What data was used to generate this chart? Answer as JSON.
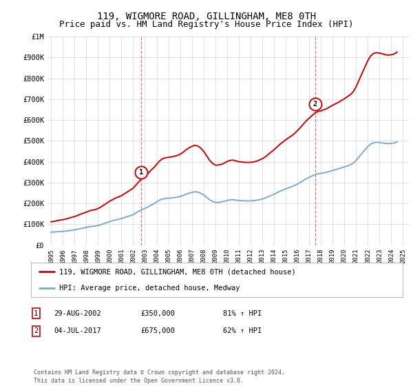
{
  "title": "119, WIGMORE ROAD, GILLINGHAM, ME8 0TH",
  "subtitle": "Price paid vs. HM Land Registry's House Price Index (HPI)",
  "background_color": "#ffffff",
  "plot_bg_color": "#ffffff",
  "grid_color": "#e0e0e0",
  "ylim": [
    0,
    1000000
  ],
  "yticks": [
    0,
    100000,
    200000,
    300000,
    400000,
    500000,
    600000,
    700000,
    800000,
    900000,
    1000000
  ],
  "ytick_labels": [
    "£0",
    "£100K",
    "£200K",
    "£300K",
    "£400K",
    "£500K",
    "£600K",
    "£700K",
    "£800K",
    "£900K",
    "£1M"
  ],
  "xmin": 1994.7,
  "xmax": 2025.5,
  "xticks": [
    1995,
    1996,
    1997,
    1998,
    1999,
    2000,
    2001,
    2002,
    2003,
    2004,
    2005,
    2006,
    2007,
    2008,
    2009,
    2010,
    2011,
    2012,
    2013,
    2014,
    2015,
    2016,
    2017,
    2018,
    2019,
    2020,
    2021,
    2022,
    2023,
    2024,
    2025
  ],
  "sale1_x": 2002.66,
  "sale1_y": 350000,
  "sale1_label": "1",
  "sale1_date": "29-AUG-2002",
  "sale1_price": "£350,000",
  "sale1_hpi": "81% ↑ HPI",
  "sale2_x": 2017.5,
  "sale2_y": 675000,
  "sale2_label": "2",
  "sale2_date": "04-JUL-2017",
  "sale2_price": "£675,000",
  "sale2_hpi": "62% ↑ HPI",
  "red_line_color": "#cc0000",
  "blue_line_color": "#7aaacf",
  "dashed_line_color": "#e87070",
  "legend_label_red": "119, WIGMORE ROAD, GILLINGHAM, ME8 0TH (detached house)",
  "legend_label_blue": "HPI: Average price, detached house, Medway",
  "footer": "Contains HM Land Registry data © Crown copyright and database right 2024.\nThis data is licensed under the Open Government Licence v3.0.",
  "hpi_data_x": [
    1995.0,
    1995.25,
    1995.5,
    1995.75,
    1996.0,
    1996.25,
    1996.5,
    1996.75,
    1997.0,
    1997.25,
    1997.5,
    1997.75,
    1998.0,
    1998.25,
    1998.5,
    1998.75,
    1999.0,
    1999.25,
    1999.5,
    1999.75,
    2000.0,
    2000.25,
    2000.5,
    2000.75,
    2001.0,
    2001.25,
    2001.5,
    2001.75,
    2002.0,
    2002.25,
    2002.5,
    2002.75,
    2003.0,
    2003.25,
    2003.5,
    2003.75,
    2004.0,
    2004.25,
    2004.5,
    2004.75,
    2005.0,
    2005.25,
    2005.5,
    2005.75,
    2006.0,
    2006.25,
    2006.5,
    2006.75,
    2007.0,
    2007.25,
    2007.5,
    2007.75,
    2008.0,
    2008.25,
    2008.5,
    2008.75,
    2009.0,
    2009.25,
    2009.5,
    2009.75,
    2010.0,
    2010.25,
    2010.5,
    2010.75,
    2011.0,
    2011.25,
    2011.5,
    2011.75,
    2012.0,
    2012.25,
    2012.5,
    2012.75,
    2013.0,
    2013.25,
    2013.5,
    2013.75,
    2014.0,
    2014.25,
    2014.5,
    2014.75,
    2015.0,
    2015.25,
    2015.5,
    2015.75,
    2016.0,
    2016.25,
    2016.5,
    2016.75,
    2017.0,
    2017.25,
    2017.5,
    2017.75,
    2018.0,
    2018.25,
    2018.5,
    2018.75,
    2019.0,
    2019.25,
    2019.5,
    2019.75,
    2020.0,
    2020.25,
    2020.5,
    2020.75,
    2021.0,
    2021.25,
    2021.5,
    2021.75,
    2022.0,
    2022.25,
    2022.5,
    2022.75,
    2023.0,
    2023.25,
    2023.5,
    2023.75,
    2024.0,
    2024.25,
    2024.5
  ],
  "hpi_data_y": [
    62000,
    63000,
    64000,
    65000,
    66000,
    67000,
    69000,
    71000,
    73000,
    76000,
    79000,
    82000,
    85000,
    88000,
    90000,
    91000,
    94000,
    98000,
    103000,
    108000,
    113000,
    117000,
    121000,
    124000,
    127000,
    132000,
    137000,
    141000,
    146000,
    155000,
    163000,
    170000,
    176000,
    183000,
    191000,
    198000,
    207000,
    216000,
    221000,
    224000,
    225000,
    226000,
    228000,
    230000,
    233000,
    238000,
    244000,
    249000,
    253000,
    256000,
    254000,
    249000,
    241000,
    230000,
    218000,
    210000,
    205000,
    205000,
    207000,
    210000,
    214000,
    217000,
    218000,
    216000,
    214000,
    213000,
    212000,
    212000,
    212000,
    213000,
    215000,
    218000,
    221000,
    226000,
    232000,
    238000,
    244000,
    251000,
    258000,
    264000,
    270000,
    275000,
    280000,
    286000,
    293000,
    301000,
    310000,
    318000,
    325000,
    332000,
    338000,
    342000,
    344000,
    347000,
    350000,
    354000,
    358000,
    362000,
    366000,
    371000,
    375000,
    380000,
    385000,
    393000,
    406000,
    423000,
    440000,
    457000,
    473000,
    485000,
    491000,
    493000,
    492000,
    490000,
    488000,
    487000,
    488000,
    490000,
    495000
  ],
  "red_data_x": [
    1995.0,
    1995.25,
    1995.5,
    1995.75,
    1996.0,
    1996.25,
    1996.5,
    1996.75,
    1997.0,
    1997.25,
    1997.5,
    1997.75,
    1998.0,
    1998.25,
    1998.5,
    1998.75,
    1999.0,
    1999.25,
    1999.5,
    1999.75,
    2000.0,
    2000.25,
    2000.5,
    2000.75,
    2001.0,
    2001.25,
    2001.5,
    2001.75,
    2002.0,
    2002.25,
    2002.5,
    2002.75,
    2003.0,
    2003.25,
    2003.5,
    2003.75,
    2004.0,
    2004.25,
    2004.5,
    2004.75,
    2005.0,
    2005.25,
    2005.5,
    2005.75,
    2006.0,
    2006.25,
    2006.5,
    2006.75,
    2007.0,
    2007.25,
    2007.5,
    2007.75,
    2008.0,
    2008.25,
    2008.5,
    2008.75,
    2009.0,
    2009.25,
    2009.5,
    2009.75,
    2010.0,
    2010.25,
    2010.5,
    2010.75,
    2011.0,
    2011.25,
    2011.5,
    2011.75,
    2012.0,
    2012.25,
    2012.5,
    2012.75,
    2013.0,
    2013.25,
    2013.5,
    2013.75,
    2014.0,
    2014.25,
    2014.5,
    2014.75,
    2015.0,
    2015.25,
    2015.5,
    2015.75,
    2016.0,
    2016.25,
    2016.5,
    2016.75,
    2017.0,
    2017.25,
    2017.5,
    2017.75,
    2018.0,
    2018.25,
    2018.5,
    2018.75,
    2019.0,
    2019.25,
    2019.5,
    2019.75,
    2020.0,
    2020.25,
    2020.5,
    2020.75,
    2021.0,
    2021.25,
    2021.5,
    2021.75,
    2022.0,
    2022.25,
    2022.5,
    2022.75,
    2023.0,
    2023.25,
    2023.5,
    2023.75,
    2024.0,
    2024.25,
    2024.5
  ],
  "red_data_y": [
    112000,
    114000,
    117000,
    120000,
    122000,
    125000,
    129000,
    133000,
    137000,
    142000,
    148000,
    153000,
    158000,
    164000,
    168000,
    170000,
    175000,
    183000,
    192000,
    201000,
    211000,
    218000,
    226000,
    231000,
    237000,
    246000,
    255000,
    264000,
    273000,
    289000,
    305000,
    319000,
    329000,
    342000,
    358000,
    371000,
    387000,
    404000,
    414000,
    419000,
    421000,
    423000,
    426000,
    430000,
    436000,
    445000,
    457000,
    466000,
    474000,
    479000,
    476000,
    466000,
    451000,
    430000,
    408000,
    393000,
    384000,
    384000,
    387000,
    393000,
    401000,
    406000,
    408000,
    404000,
    400000,
    399000,
    397000,
    397000,
    397000,
    399000,
    402000,
    408000,
    414000,
    423000,
    434000,
    446000,
    457000,
    470000,
    483000,
    494000,
    505000,
    515000,
    524000,
    535000,
    549000,
    564000,
    580000,
    596000,
    609000,
    622000,
    634000,
    641000,
    644000,
    649000,
    655000,
    663000,
    671000,
    678000,
    685000,
    694000,
    702000,
    712000,
    721000,
    735000,
    759000,
    791000,
    823000,
    854000,
    885000,
    908000,
    920000,
    923000,
    921000,
    918000,
    913000,
    912000,
    913000,
    917000,
    926000
  ],
  "title_fontsize": 10,
  "subtitle_fontsize": 9
}
